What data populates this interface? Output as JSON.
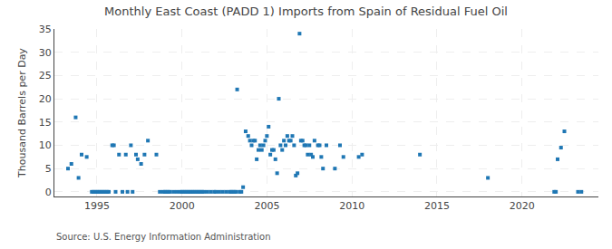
{
  "chart_data": {
    "type": "scatter",
    "title": "Monthly East Coast (PADD 1) Imports from Spain of Residual Fuel Oil",
    "ylabel": "Thousand Barrels per Day",
    "annotations": [
      "Source: U.S. Energy Information Administration"
    ],
    "marker": "square",
    "grid": true,
    "xlim": [
      1992.5,
      2024.5
    ],
    "xticks": [
      1995,
      2000,
      2005,
      2010,
      2015,
      2020
    ],
    "ylim": [
      -1,
      35
    ],
    "yticks": [
      0,
      5,
      10,
      15,
      20,
      25,
      30,
      35
    ],
    "x": [
      1993.3,
      1993.5,
      1993.75,
      1993.92,
      1994.1,
      1994.4,
      1994.7,
      1994.8,
      1994.9,
      1995.0,
      1995.1,
      1995.2,
      1995.3,
      1995.4,
      1995.5,
      1995.6,
      1995.7,
      1995.9,
      1996.0,
      1996.1,
      1996.3,
      1996.5,
      1996.7,
      1996.8,
      1997.0,
      1997.1,
      1997.3,
      1997.4,
      1997.6,
      1997.8,
      1998.0,
      1998.5,
      1998.7,
      1998.9,
      1999.0,
      1999.1,
      1999.2,
      1999.3,
      1999.5,
      1999.7,
      1999.9,
      2000.0,
      2000.1,
      2000.2,
      2000.3,
      2000.4,
      2000.5,
      2000.6,
      2000.7,
      2000.8,
      2000.9,
      2001.0,
      2001.1,
      2001.2,
      2001.3,
      2001.5,
      2001.7,
      2001.9,
      2002.0,
      2002.2,
      2002.4,
      2002.6,
      2002.8,
      2002.9,
      2003.0,
      2003.1,
      2003.2,
      2003.25,
      2003.4,
      2003.5,
      2003.6,
      2003.75,
      2003.9,
      2004.0,
      2004.1,
      2004.2,
      2004.3,
      2004.4,
      2004.5,
      2004.6,
      2004.7,
      2004.8,
      2004.9,
      2005.0,
      2005.1,
      2005.2,
      2005.3,
      2005.4,
      2005.5,
      2005.6,
      2005.7,
      2005.8,
      2005.9,
      2006.0,
      2006.1,
      2006.2,
      2006.3,
      2006.4,
      2006.5,
      2006.6,
      2006.7,
      2006.8,
      2006.92,
      2007.0,
      2007.1,
      2007.2,
      2007.3,
      2007.4,
      2007.5,
      2007.6,
      2007.7,
      2007.8,
      2008.0,
      2008.1,
      2008.2,
      2008.3,
      2008.5,
      2009.0,
      2009.3,
      2009.5,
      2010.4,
      2010.6,
      2014.0,
      2018.0,
      2021.9,
      2022.0,
      2022.1,
      2022.3,
      2022.5,
      2023.3,
      2023.5
    ],
    "values": [
      5,
      6,
      16,
      3,
      8,
      7.5,
      0,
      0,
      0,
      0,
      0,
      0,
      0,
      0,
      0,
      0,
      0,
      10,
      10,
      0,
      8,
      0,
      8,
      0,
      10,
      0,
      8,
      7,
      6,
      8,
      11,
      8,
      0,
      0,
      0,
      0,
      0,
      0,
      0,
      0,
      0,
      0,
      0,
      0,
      0,
      0,
      0,
      0,
      0,
      0,
      0,
      0,
      0,
      0,
      0,
      0,
      0,
      0,
      0,
      0,
      0,
      0,
      0,
      0,
      0,
      0,
      0,
      22,
      0,
      0,
      1,
      13,
      12,
      11,
      10,
      11,
      11,
      7,
      9,
      10,
      9,
      10,
      11,
      12,
      14,
      8,
      9,
      9,
      7,
      4,
      20,
      10,
      9,
      11,
      10,
      12,
      11,
      11,
      12,
      10,
      3.5,
      4,
      34,
      11,
      11,
      10,
      10,
      8,
      10,
      8,
      7.5,
      11,
      10,
      10,
      7.5,
      5,
      10,
      5,
      10,
      7.5,
      7.5,
      8,
      8,
      3,
      0,
      0,
      7,
      9.5,
      13,
      0,
      0
    ]
  }
}
